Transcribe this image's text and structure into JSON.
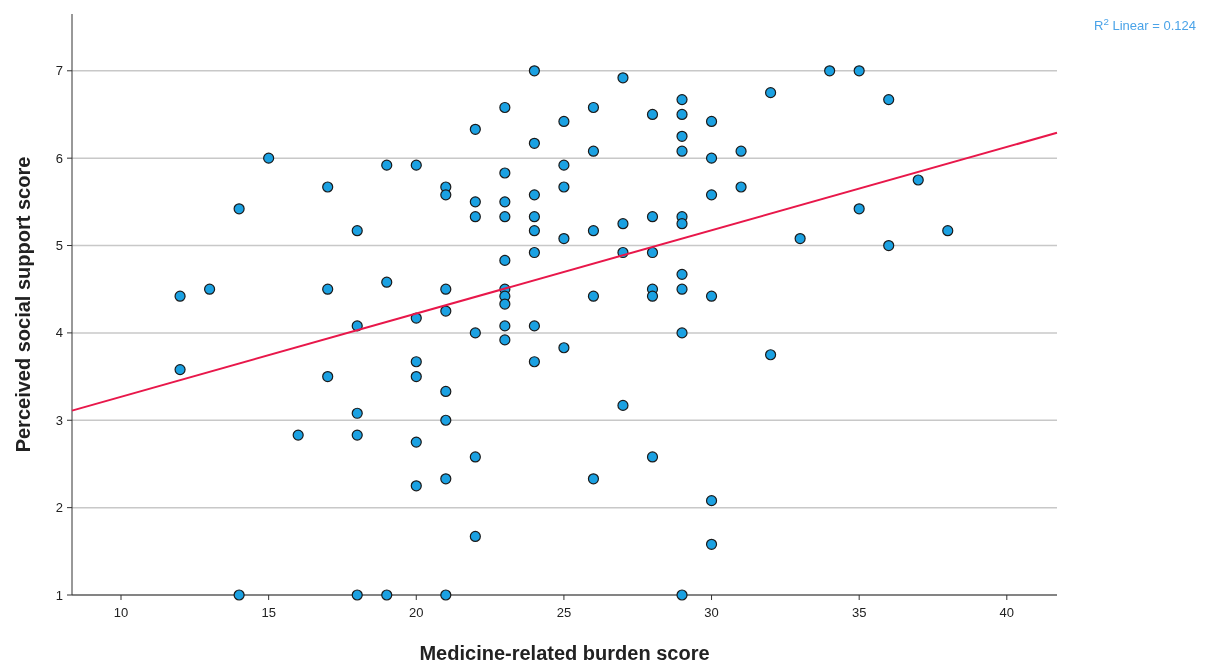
{
  "chart_data": {
    "type": "scatter",
    "xlabel": "Medicine-related burden score",
    "ylabel": "Perceived social support score",
    "xlim": [
      8.34,
      41.7
    ],
    "ylim": [
      1,
      7.65
    ],
    "xticks": [
      10,
      15,
      20,
      25,
      30,
      35,
      40
    ],
    "yticks": [
      1,
      2,
      3,
      4,
      5,
      6,
      7
    ],
    "grid": "y",
    "marker": "circle",
    "annotations": [
      "R$^{2}$ Linear = 0.124"
    ],
    "series": [
      {
        "color": "#1ba1e2",
        "x": [
          12,
          12,
          13,
          14,
          14,
          15,
          16,
          17,
          17,
          17,
          18,
          18,
          18,
          18,
          18,
          19,
          19,
          19,
          20,
          20,
          20,
          20,
          20,
          20,
          21,
          21,
          21,
          21,
          21,
          21,
          21,
          21,
          22,
          22,
          22,
          22,
          22,
          22,
          23,
          23,
          23,
          23,
          23,
          23,
          23,
          23,
          23,
          23,
          24,
          24,
          24,
          24,
          24,
          24,
          24,
          24,
          25,
          25,
          25,
          25,
          25,
          26,
          26,
          26,
          26,
          26,
          27,
          27,
          27,
          27,
          28,
          28,
          28,
          28,
          28,
          28,
          29,
          29,
          29,
          29,
          29,
          29,
          29,
          29,
          29,
          29,
          30,
          30,
          30,
          30,
          30,
          30,
          31,
          31,
          32,
          32,
          33,
          34,
          35,
          35,
          36,
          36,
          37,
          38
        ],
        "values": [
          4.42,
          3.58,
          4.5,
          5.42,
          1.0,
          6.0,
          2.83,
          5.67,
          4.5,
          3.5,
          5.17,
          4.08,
          3.08,
          2.83,
          1.0,
          5.92,
          4.58,
          1.0,
          5.92,
          4.17,
          3.67,
          3.5,
          2.75,
          2.25,
          5.67,
          5.58,
          4.5,
          4.25,
          3.33,
          3.0,
          2.33,
          1.0,
          6.33,
          5.5,
          5.33,
          4.0,
          2.58,
          1.67,
          6.58,
          5.83,
          5.5,
          5.33,
          4.83,
          4.5,
          4.42,
          4.33,
          4.08,
          3.92,
          7.0,
          6.17,
          5.58,
          5.33,
          5.17,
          4.92,
          4.08,
          3.67,
          6.42,
          5.92,
          5.67,
          5.08,
          3.83,
          6.58,
          6.08,
          5.17,
          4.42,
          2.33,
          6.92,
          5.25,
          4.92,
          3.17,
          6.5,
          5.33,
          4.92,
          4.5,
          4.42,
          2.58,
          6.67,
          6.5,
          6.25,
          6.08,
          5.33,
          5.25,
          4.67,
          4.5,
          4.0,
          1.0,
          6.42,
          6.0,
          5.58,
          4.42,
          2.08,
          1.58,
          6.08,
          5.67,
          6.75,
          3.75,
          5.08,
          7.0,
          7.0,
          5.42,
          6.67,
          5.0,
          5.75,
          5.17
        ]
      },
      {
        "type": "line",
        "marker": "none",
        "color": "#e8174a",
        "x": [
          8.34,
          41.7
        ],
        "values": [
          3.11,
          6.29
        ]
      }
    ]
  }
}
